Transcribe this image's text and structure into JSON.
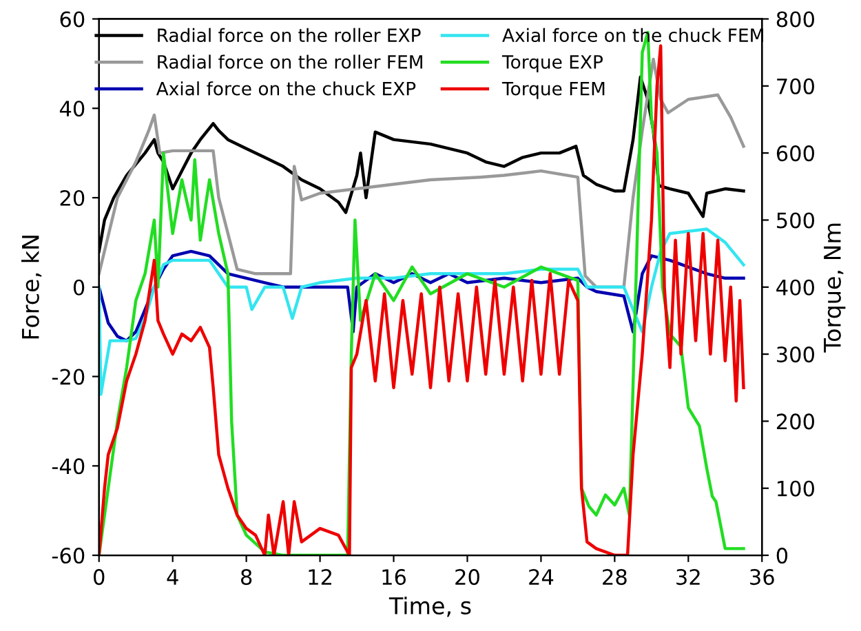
{
  "chart_data": {
    "type": "line",
    "xlabel": "Time, s",
    "ylabel": "Force, kN",
    "y2label": "Torque, Nm",
    "xlim": [
      0,
      36
    ],
    "xticks": [
      0,
      4,
      8,
      12,
      16,
      20,
      24,
      28,
      32,
      36
    ],
    "ylim": [
      -60,
      60
    ],
    "yticks": [
      -60,
      -40,
      -20,
      0,
      20,
      40,
      60
    ],
    "y2lim": [
      0,
      800
    ],
    "y2ticks": [
      0,
      100,
      200,
      300,
      400,
      500,
      600,
      700,
      800
    ],
    "grid": false,
    "legend": "top",
    "line_style": "solid",
    "marker": "none",
    "series": [
      {
        "name": "Radial force on the roller EXP",
        "color": "#000000",
        "x": [
          0,
          0.3,
          0.8,
          1.5,
          2.5,
          3,
          3.2,
          3.5,
          4,
          4.5,
          5,
          5.5,
          6.2,
          6.5,
          7,
          7.5,
          8,
          9,
          10,
          11,
          12,
          13,
          13.4,
          14,
          14.2,
          14.5,
          15,
          16,
          18,
          20,
          21,
          22,
          23,
          24,
          25,
          25.9,
          26.3,
          27,
          28,
          28.5,
          29,
          29.4,
          29.8,
          30.1,
          30.4,
          31,
          32,
          32.8,
          33,
          34,
          35
        ],
        "values": [
          8,
          15,
          20,
          25,
          30,
          33,
          30,
          28,
          22,
          26,
          30,
          33,
          36.6,
          35,
          33,
          32,
          31,
          29,
          27,
          24,
          22,
          19,
          16.7,
          25,
          30,
          20,
          34.7,
          33,
          32,
          30,
          28,
          27,
          29,
          30,
          30,
          31.5,
          25,
          23,
          21.5,
          21.5,
          33,
          47,
          42,
          35,
          22.7,
          22,
          21,
          15.8,
          21,
          22,
          21.5
        ]
      },
      {
        "name": "Radial force on the roller FEM",
        "color": "#999999",
        "x": [
          0,
          1,
          2,
          2.7,
          3,
          3.3,
          4,
          5,
          6.2,
          6.5,
          7.5,
          8.5,
          10,
          10.4,
          10.6,
          11,
          12,
          14,
          16,
          18,
          20.7,
          22,
          24,
          26,
          26.4,
          27,
          28.5,
          29,
          29.5,
          30.1,
          30.5,
          30.9,
          32,
          33.6,
          34.3,
          35
        ],
        "values": [
          3,
          20,
          28,
          35,
          38.5,
          30,
          30.5,
          30.5,
          30.5,
          20,
          4,
          3,
          3,
          3,
          27,
          19.5,
          21,
          22,
          23,
          24,
          24.6,
          25,
          26,
          24.6,
          2.5,
          0,
          0,
          20,
          35,
          51,
          42,
          39,
          42,
          43,
          38,
          31.5
        ]
      },
      {
        "name": "Axial force on the chuck EXP",
        "color": "#0000b0",
        "x": [
          0,
          0.5,
          1,
          1.5,
          2,
          2.5,
          3,
          3.5,
          4,
          5,
          6,
          6.5,
          7,
          8,
          9,
          10,
          12,
          13.5,
          13.8,
          14,
          15,
          16,
          17,
          18,
          19,
          20,
          22,
          24,
          26,
          26.5,
          27,
          28.5,
          29,
          29.5,
          30,
          31,
          33,
          34,
          35
        ],
        "values": [
          0,
          -8,
          -11,
          -12,
          -10,
          -5,
          0,
          4,
          7,
          8,
          7,
          5,
          3,
          2,
          1,
          0,
          0,
          0,
          -10,
          0,
          3,
          1,
          3,
          1,
          3,
          1,
          2,
          1,
          2,
          0,
          -1,
          -2,
          -10,
          3,
          7,
          6,
          3,
          2,
          2
        ]
      },
      {
        "name": "Axial force on the chuck FEM",
        "color": "#33e5f0",
        "x": [
          0,
          0.1,
          0.6,
          1,
          1.5,
          2,
          2.5,
          3,
          3.5,
          4,
          5,
          6,
          6.5,
          7,
          8,
          8.3,
          9,
          10,
          10.5,
          11,
          12,
          14,
          16,
          18,
          20,
          22,
          24,
          26,
          26.5,
          28.5,
          29,
          29.5,
          30,
          30.5,
          31,
          33,
          34,
          35
        ],
        "values": [
          0,
          -24,
          -12,
          -12,
          -12,
          -11.5,
          -7,
          0,
          5,
          6,
          6,
          6,
          3,
          0,
          0,
          -5,
          0,
          0,
          -7,
          0,
          1,
          2,
          2,
          3,
          3,
          3,
          4,
          4,
          0,
          0,
          -5,
          -10,
          0,
          8,
          12,
          13,
          10,
          5
        ]
      },
      {
        "name": "Torque EXP",
        "color": "#22dd22",
        "axis": "y2",
        "x": [
          0,
          1,
          1.5,
          2,
          2.5,
          3,
          3.2,
          3.5,
          4,
          4.5,
          5,
          5.2,
          5.5,
          6,
          6.5,
          7,
          7.2,
          7.5,
          8,
          9,
          10,
          13.5,
          13.7,
          13.9,
          14.2,
          15,
          16,
          17,
          18,
          20,
          22,
          24,
          26,
          26.2,
          26.6,
          27,
          27.5,
          28,
          28.5,
          28.8,
          29.2,
          29.5,
          29.8,
          30,
          30.3,
          30.6,
          31,
          31.6,
          32,
          32.6,
          33,
          33.3,
          33.5,
          34,
          35
        ],
        "values": [
          0,
          200,
          280,
          380,
          420,
          500,
          400,
          600,
          480,
          560,
          500,
          590,
          470,
          560,
          480,
          420,
          200,
          60,
          30,
          5,
          0,
          0,
          300,
          500,
          350,
          420,
          380,
          430,
          390,
          420,
          400,
          430,
          410,
          100,
          73,
          60,
          90,
          75,
          100,
          60,
          450,
          750,
          780,
          650,
          600,
          400,
          330,
          311,
          220,
          193,
          130,
          88,
          80,
          10,
          10
        ]
      },
      {
        "name": "Torque FEM",
        "color": "#ee0000",
        "axis": "y2",
        "x": [
          0,
          0.3,
          0.5,
          1,
          1.5,
          2,
          2.5,
          3,
          3.2,
          3.5,
          4,
          4.5,
          5,
          5.5,
          6,
          6.2,
          6.5,
          7,
          7.5,
          8,
          8.5,
          9,
          9.2,
          9.5,
          10,
          10.3,
          10.6,
          11,
          12,
          13,
          13.6,
          13.7,
          14,
          14.5,
          15,
          15.5,
          16,
          16.5,
          17,
          17.5,
          18,
          18.5,
          19,
          19.5,
          20,
          20.5,
          21,
          21.5,
          22,
          22.5,
          23,
          23.5,
          24,
          24.5,
          25,
          25.5,
          26,
          26.2,
          26.5,
          27,
          28,
          28.7,
          29,
          29.5,
          30,
          30.3,
          30.5,
          30.7,
          31,
          31.3,
          31.6,
          32,
          32.4,
          32.8,
          33.2,
          33.6,
          34,
          34.3,
          34.6,
          34.8,
          35
        ],
        "values": [
          0,
          100,
          150,
          190,
          260,
          300,
          350,
          440,
          350,
          330,
          300,
          330,
          320,
          340,
          310,
          250,
          150,
          100,
          60,
          40,
          30,
          0,
          60,
          0,
          80,
          0,
          80,
          20,
          40,
          30,
          0,
          280,
          300,
          380,
          260,
          390,
          250,
          380,
          270,
          390,
          250,
          400,
          260,
          390,
          260,
          400,
          270,
          410,
          270,
          400,
          260,
          410,
          270,
          420,
          270,
          410,
          380,
          100,
          20,
          10,
          0,
          0,
          150,
          300,
          500,
          700,
          760,
          400,
          280,
          470,
          300,
          480,
          320,
          480,
          300,
          470,
          290,
          400,
          230,
          380,
          250
        ]
      }
    ]
  }
}
